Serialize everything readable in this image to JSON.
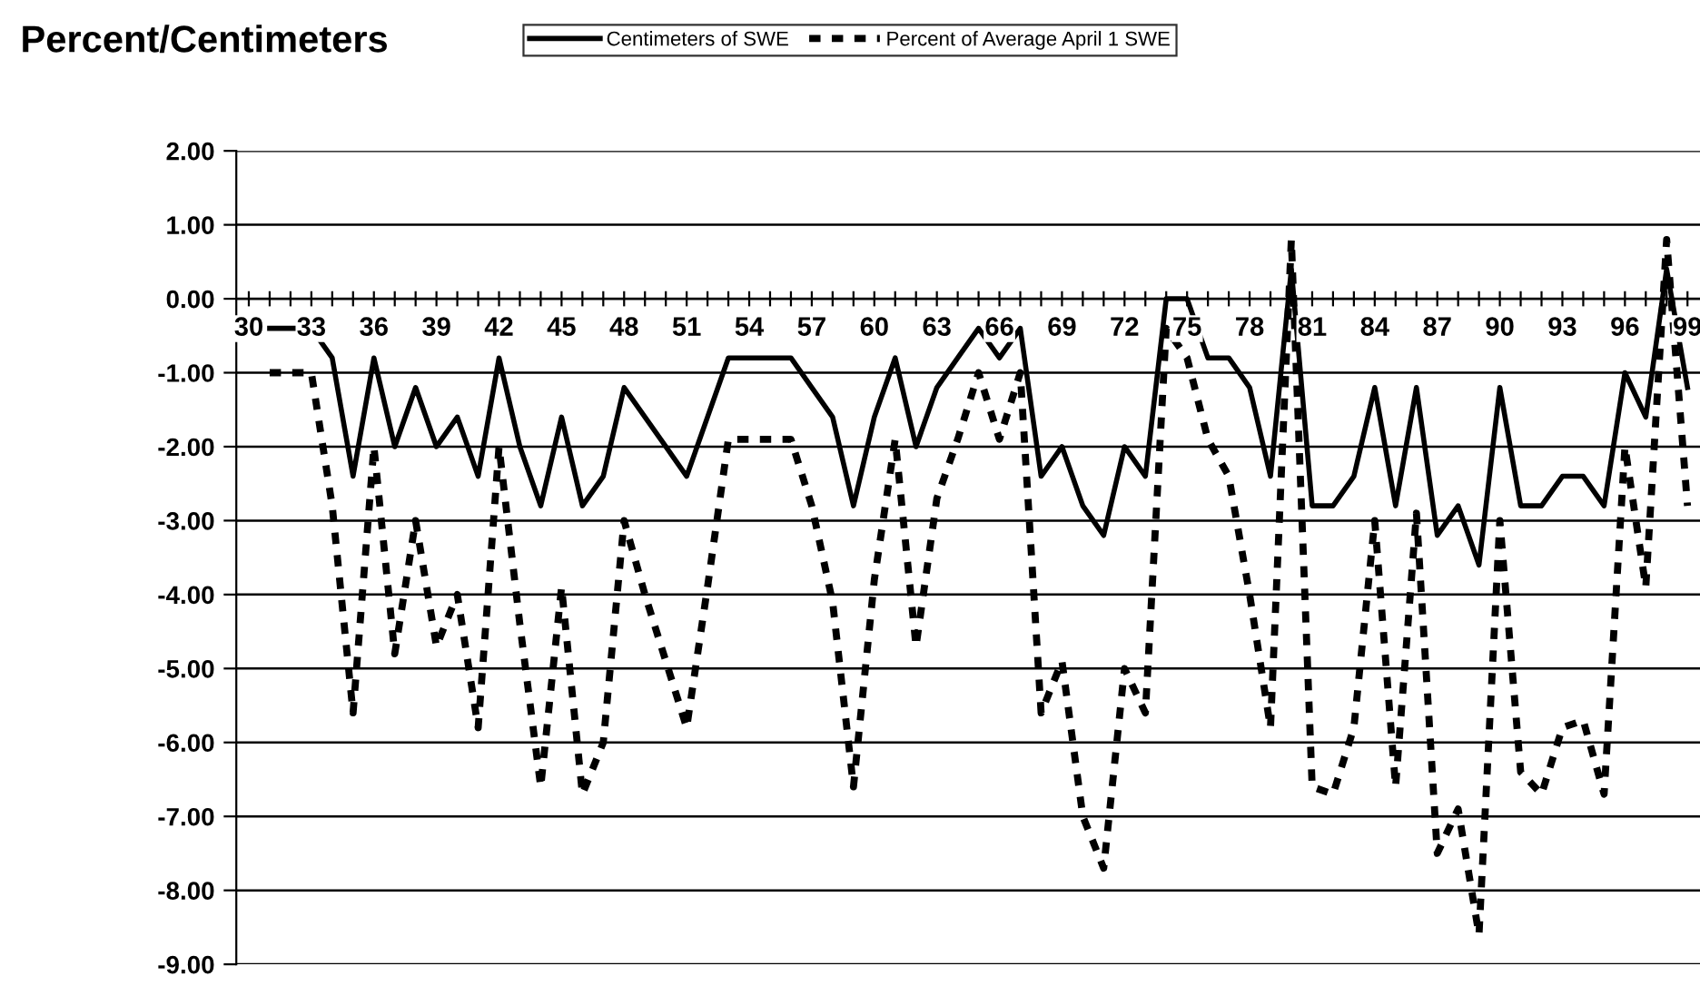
{
  "chart_data": {
    "type": "line",
    "title": "Percent/Centimeters",
    "categories": [
      "30",
      null,
      null,
      "33",
      null,
      null,
      "36",
      null,
      null,
      "39",
      null,
      null,
      "42",
      null,
      null,
      "45",
      null,
      null,
      "48",
      null,
      null,
      "51",
      null,
      null,
      "54",
      null,
      null,
      "57",
      null,
      null,
      "60",
      null,
      null,
      "63",
      null,
      null,
      "66",
      null,
      null,
      "69",
      null,
      null,
      "72",
      null,
      null,
      "75",
      null,
      null,
      "78",
      null,
      null,
      "81",
      null,
      null,
      "84",
      null,
      null,
      "87",
      null,
      null,
      "90",
      null,
      null,
      "93",
      null,
      null,
      "96",
      null,
      null,
      "99"
    ],
    "series": [
      {
        "name": "Centimeters of SWE",
        "color": "#000000",
        "line_style": "solid",
        "values": [
          null,
          -0.4,
          -0.4,
          -0.4,
          -0.8,
          -2.4,
          -0.8,
          -2.0,
          -1.2,
          -2.0,
          -1.6,
          -2.4,
          -0.8,
          -2.0,
          -2.8,
          -1.6,
          -2.8,
          -2.4,
          -1.2,
          -1.6,
          -2.0,
          -2.4,
          -1.6,
          -0.8,
          -0.8,
          -0.8,
          -0.8,
          -1.2,
          -1.6,
          -2.8,
          -1.6,
          -0.8,
          -2.0,
          -1.2,
          -0.8,
          -0.4,
          -0.8,
          -0.4,
          -2.4,
          -2.0,
          -2.8,
          -3.2,
          -2.0,
          -2.4,
          0.0,
          0.0,
          -0.8,
          -0.8,
          -1.2,
          -2.4,
          0.4,
          -2.8,
          -2.8,
          -2.4,
          -1.2,
          -2.8,
          -1.2,
          -3.2,
          -2.8,
          -3.6,
          -1.2,
          -2.8,
          -2.8,
          -2.4,
          -2.4,
          -2.8,
          -1.0,
          -1.6,
          0.4,
          -1.2
        ]
      },
      {
        "name": "Percent of Average April 1 SWE",
        "color": "#000000",
        "line_style": "dashed",
        "values": [
          null,
          -1.0,
          -1.0,
          -1.0,
          -2.8,
          -5.6,
          -2.0,
          -4.8,
          -3.0,
          -4.7,
          -4.0,
          -5.8,
          -2.0,
          -4.4,
          -6.6,
          -3.9,
          -6.7,
          -6.0,
          -3.0,
          -4.0,
          -4.9,
          -5.8,
          -3.9,
          -1.9,
          -1.9,
          -1.9,
          -1.9,
          -2.8,
          -4.1,
          -6.6,
          -3.8,
          -1.9,
          -4.7,
          -2.7,
          -1.9,
          -1.0,
          -1.9,
          -1.0,
          -5.6,
          -4.9,
          -7.0,
          -7.7,
          -5.0,
          -5.6,
          -0.4,
          -0.8,
          -1.9,
          -2.4,
          -4.0,
          -5.8,
          0.8,
          -6.6,
          -6.7,
          -5.8,
          -3.0,
          -6.6,
          -2.9,
          -7.5,
          -6.9,
          -8.6,
          -3.0,
          -6.4,
          -6.7,
          -5.8,
          -5.7,
          -6.7,
          -2.0,
          -3.9,
          0.8,
          -2.8
        ]
      }
    ],
    "ylim": [
      -9,
      2
    ],
    "yticks": [
      {
        "value": 2,
        "label": "2.00"
      },
      {
        "value": 1,
        "label": "1.00"
      },
      {
        "value": 0,
        "label": "0.00"
      },
      {
        "value": -1,
        "label": "-1.00"
      },
      {
        "value": -2,
        "label": "-2.00"
      },
      {
        "value": -3,
        "label": "-3.00"
      },
      {
        "value": -4,
        "label": "-4.00"
      },
      {
        "value": -5,
        "label": "-5.00"
      },
      {
        "value": -6,
        "label": "-6.00"
      },
      {
        "value": -7,
        "label": "-7.00"
      },
      {
        "value": -8,
        "label": "-8.00"
      },
      {
        "value": -9,
        "label": "-9.00"
      }
    ],
    "grid": "y",
    "legend": "top",
    "marker": "none"
  }
}
